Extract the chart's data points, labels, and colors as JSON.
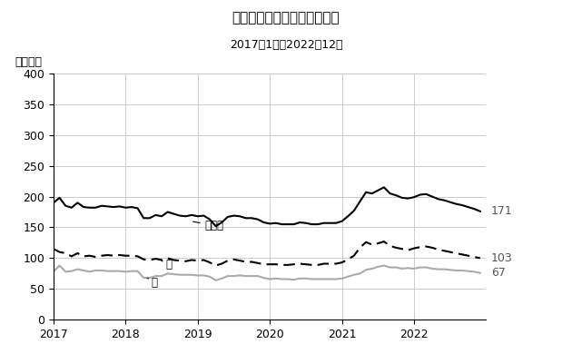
{
  "title_line1": "完全失業者数（季節調整値）",
  "title_line2": "2017年1月～2022年12月",
  "ylabel": "（万人）",
  "ylim": [
    0,
    400
  ],
  "yticks": [
    0,
    50,
    100,
    150,
    200,
    250,
    300,
    350,
    400
  ],
  "xlim_start": 2017.0,
  "xlim_end": 2023.0,
  "xtick_years": [
    2017,
    2018,
    2019,
    2020,
    2021,
    2022
  ],
  "label_danjo": "男女計",
  "label_dan": "男",
  "label_jo": "女",
  "end_label_danjo": "171",
  "end_label_dan": "103",
  "end_label_jo": "67",
  "color_danjo": "#000000",
  "color_dan": "#000000",
  "color_jo": "#aaaaaa",
  "danjo": [
    190,
    198,
    185,
    182,
    190,
    183,
    182,
    182,
    185,
    184,
    183,
    184,
    182,
    183,
    181,
    165,
    165,
    170,
    168,
    175,
    172,
    169,
    168,
    170,
    168,
    169,
    163,
    152,
    158,
    167,
    169,
    168,
    165,
    165,
    163,
    158,
    156,
    157,
    155,
    155,
    155,
    158,
    157,
    155,
    155,
    157,
    157,
    157,
    160,
    168,
    177,
    192,
    207,
    205,
    210,
    215,
    205,
    202,
    198,
    197,
    199,
    203,
    204,
    200,
    196,
    194,
    191,
    188,
    186,
    183,
    180,
    176,
    175,
    172,
    170,
    168,
    171
  ],
  "dan": [
    115,
    110,
    108,
    103,
    108,
    103,
    104,
    102,
    104,
    105,
    104,
    105,
    104,
    104,
    103,
    98,
    97,
    99,
    97,
    100,
    97,
    96,
    95,
    97,
    96,
    97,
    93,
    88,
    91,
    96,
    98,
    96,
    94,
    94,
    92,
    90,
    90,
    90,
    89,
    89,
    90,
    91,
    90,
    89,
    89,
    91,
    91,
    91,
    93,
    98,
    104,
    117,
    126,
    122,
    124,
    127,
    120,
    117,
    115,
    113,
    116,
    118,
    119,
    117,
    114,
    112,
    110,
    108,
    106,
    104,
    102,
    100,
    102,
    101,
    100,
    99,
    103
  ],
  "jo": [
    78,
    88,
    78,
    79,
    82,
    80,
    78,
    80,
    80,
    79,
    79,
    79,
    78,
    79,
    79,
    68,
    68,
    71,
    71,
    75,
    74,
    73,
    73,
    73,
    72,
    72,
    70,
    64,
    67,
    71,
    71,
    72,
    71,
    71,
    71,
    68,
    66,
    67,
    66,
    66,
    65,
    67,
    67,
    66,
    66,
    66,
    66,
    66,
    67,
    70,
    73,
    75,
    81,
    83,
    86,
    88,
    85,
    85,
    83,
    84,
    83,
    85,
    85,
    83,
    82,
    82,
    81,
    80,
    80,
    79,
    78,
    76,
    73,
    71,
    70,
    69,
    67
  ]
}
